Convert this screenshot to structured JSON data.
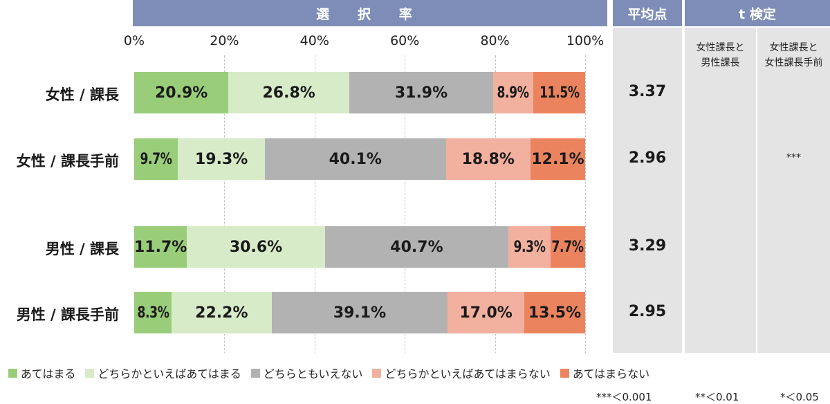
{
  "headers": {
    "selection_rate": "選 択 率",
    "average": "平均点",
    "t_test": "t 検定"
  },
  "t_test_columns": [
    {
      "line1": "女性課長と",
      "line2": "男性課長"
    },
    {
      "line1": "女性課長と",
      "line2": "女性課長手前"
    }
  ],
  "colors": {
    "atehamaru": "#9acd7a",
    "dochiraka_atehamaru": "#d7ebc8",
    "dochiratomo": "#b2b2b2",
    "dochiraka_atehamaranai": "#f2b09f",
    "atehamaranai": "#eb845e",
    "header": "#7e8db8",
    "panel": "#e4e4e4"
  },
  "chart_data": {
    "type": "bar",
    "orientation": "horizontal",
    "stacked": true,
    "x_ticks": [
      "0%",
      "20%",
      "40%",
      "60%",
      "80%",
      "100%"
    ],
    "xlim": [
      0,
      100
    ],
    "grid": true,
    "legend_position": "bottom",
    "categories": [
      "女性 / 課長",
      "女性 / 課長手前",
      "男性 / 課長",
      "男性 / 課長手前"
    ],
    "series": [
      {
        "name": "あてはまる",
        "values": [
          20.9,
          9.7,
          11.7,
          8.3
        ],
        "labels": [
          "20.9%",
          "9.7%",
          "11.7%",
          "8.3%"
        ]
      },
      {
        "name": "どちらかといえばあてはまる",
        "values": [
          26.8,
          19.3,
          30.6,
          22.2
        ],
        "labels": [
          "26.8%",
          "19.3%",
          "30.6%",
          "22.2%"
        ]
      },
      {
        "name": "どちらともいえない",
        "values": [
          31.9,
          40.1,
          40.7,
          39.1
        ],
        "labels": [
          "31.9%",
          "40.1%",
          "40.7%",
          "39.1%"
        ]
      },
      {
        "name": "どちらかといえばあてはまらない",
        "values": [
          8.9,
          18.8,
          9.3,
          17.0
        ],
        "labels": [
          "8.9%",
          "18.8%",
          "9.3%",
          "17.0%"
        ]
      },
      {
        "name": "あてはまらない",
        "values": [
          11.5,
          12.1,
          7.7,
          13.5
        ],
        "labels": [
          "11.5%",
          "12.1%",
          "7.7%",
          "13.5%"
        ]
      }
    ],
    "averages": [
      "3.37",
      "2.96",
      "3.29",
      "2.95"
    ],
    "t_test_marks": [
      [
        "",
        ""
      ],
      [
        "",
        "***"
      ],
      [
        "",
        ""
      ],
      [
        "",
        ""
      ]
    ]
  },
  "significance_notes": [
    "***＜0.001",
    "**＜0.01",
    "*＜0.05"
  ]
}
